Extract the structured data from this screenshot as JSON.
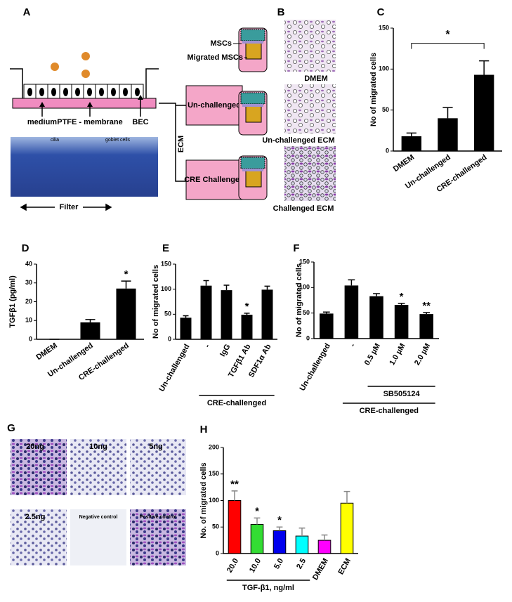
{
  "panels": [
    "A",
    "B",
    "C",
    "D",
    "E",
    "F",
    "G",
    "H"
  ],
  "diagram": {
    "transwell": {
      "medium": "medium",
      "membrane": "PTFE - membrane",
      "cells": "BEC",
      "cilia": "cilia",
      "goblet": "goblet cells",
      "filter": "Filter"
    },
    "ecm": "ECM",
    "box1": "Un-challenged",
    "box2": "CRE Challenged",
    "msc": "MSCs",
    "migrated": "Migrated MSCs",
    "micrographs": [
      "DMEM",
      "Un-challenged ECM",
      "Challenged ECM"
    ],
    "dose_images": [
      "20ng",
      "10ng",
      "5ng",
      "2.5ng",
      "Negative control",
      "Positive control"
    ]
  },
  "chart_data": [
    {
      "type": "bar",
      "ylabel": "No of migrated cells",
      "categories": [
        "DMEM",
        "Un-challenged",
        "CRE-challenged"
      ],
      "values": [
        18,
        40,
        93
      ],
      "errors": [
        4,
        13,
        17
      ],
      "color": "#000000",
      "ylim": [
        0,
        150
      ],
      "yticks": [
        0,
        50,
        100,
        150
      ],
      "significance": [
        {
          "from": "DMEM",
          "to": "CRE-challenged",
          "label": "*"
        }
      ]
    },
    {
      "type": "bar",
      "ylabel": "TGFβ1 (pg/ml)",
      "categories": [
        "DMEM",
        "Un-challenged",
        "CRE-challenged"
      ],
      "values": [
        0,
        9,
        27
      ],
      "errors": [
        0,
        1.5,
        4
      ],
      "color": "#000000",
      "ylim": [
        0,
        40
      ],
      "yticks": [
        0,
        10,
        20,
        30,
        40
      ],
      "significance": [
        {
          "category": "CRE-challenged",
          "label": "*"
        }
      ]
    },
    {
      "type": "bar",
      "ylabel": "No of migrated cells",
      "categories": [
        "Un-challenged",
        "-",
        "IgG",
        "TGFβ1 Ab",
        "SDF1α Ab"
      ],
      "values": [
        43,
        107,
        98,
        49,
        99
      ],
      "errors": [
        4,
        10,
        10,
        3,
        7
      ],
      "color": "#000000",
      "ylim": [
        0,
        150
      ],
      "yticks": [
        0,
        50,
        100,
        150
      ],
      "significance": [
        {
          "category": "TGFβ1 Ab",
          "label": "*"
        }
      ],
      "groups": [
        {
          "label": "CRE-challenged",
          "categories": [
            "-",
            "IgG",
            "TGFβ1 Ab",
            "SDF1α Ab"
          ]
        }
      ]
    },
    {
      "type": "bar",
      "ylabel": "No of migrated cells",
      "categories": [
        "Un-challenged",
        "-",
        "0.5 µM",
        "1.0 µM",
        "2.0 µM"
      ],
      "values": [
        49,
        104,
        83,
        66,
        48
      ],
      "errors": [
        3,
        11,
        5,
        3,
        3
      ],
      "color": "#000000",
      "ylim": [
        0,
        150
      ],
      "yticks": [
        0,
        50,
        100,
        150
      ],
      "significance": [
        {
          "category": "1.0 µM",
          "label": "*"
        },
        {
          "category": "2.0 µM",
          "label": "**"
        }
      ],
      "groups": [
        {
          "label": "SB505124",
          "categories": [
            "0.5 µM",
            "1.0 µM",
            "2.0 µM"
          ]
        },
        {
          "label": "CRE-challenged",
          "categories": [
            "-",
            "0.5 µM",
            "1.0 µM",
            "2.0 µM"
          ]
        }
      ]
    },
    {
      "type": "bar",
      "ylabel": "No. of migrated cells",
      "categories": [
        "20.0",
        "10.0",
        "5.0",
        "2.5",
        "DMEM",
        "ECM"
      ],
      "values": [
        100,
        55,
        43,
        33,
        25,
        95
      ],
      "errors": [
        18,
        12,
        7,
        15,
        10,
        22
      ],
      "colors": [
        "#ff0000",
        "#33dd33",
        "#0000ee",
        "#00ffff",
        "#ff00ff",
        "#ffff00"
      ],
      "ylim": [
        0,
        200
      ],
      "yticks": [
        0,
        50,
        100,
        150,
        200
      ],
      "significance": [
        {
          "category": "20.0",
          "label": "**"
        },
        {
          "category": "10.0",
          "label": "*"
        },
        {
          "category": "5.0",
          "label": "*"
        }
      ],
      "groups": [
        {
          "label": "TGF-β1, ng/ml",
          "categories": [
            "20.0",
            "10.0",
            "5.0",
            "2.5"
          ]
        }
      ]
    }
  ]
}
